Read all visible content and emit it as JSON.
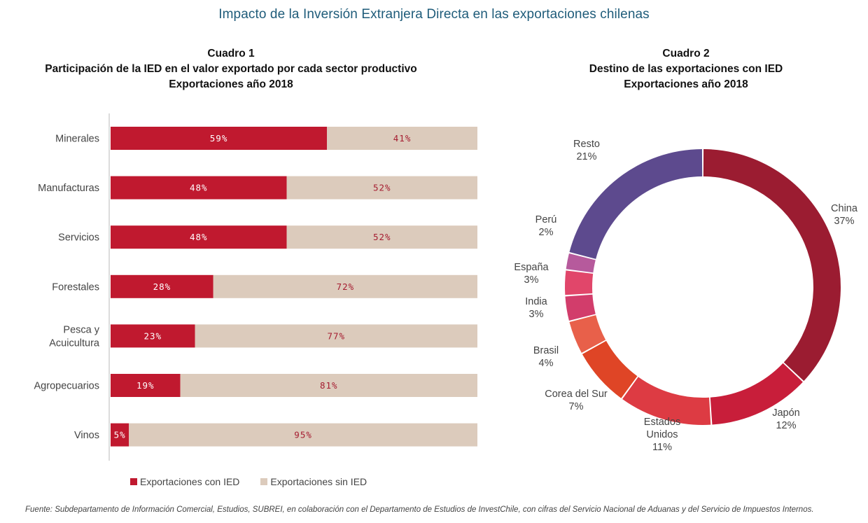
{
  "main_title": "Impacto de la Inversión Extranjera Directa en las exportaciones chilenas",
  "colors": {
    "ied": "#c0192f",
    "sin_ied": "#dccbbc",
    "label_in_red": "#ffffff",
    "label_in_beige": "#a51c30"
  },
  "chart_data": [
    {
      "type": "bar",
      "orientation": "horizontal-stacked-100",
      "number": "Cuadro 1",
      "title": "Participación de la IED en el valor exportado por cada sector productivo",
      "subtitle": "Exportaciones año 2018",
      "categories": [
        [
          "Minerales"
        ],
        [
          "Manufacturas"
        ],
        [
          "Servicios"
        ],
        [
          "Forestales"
        ],
        [
          "Pesca y",
          "Acuicultura"
        ],
        [
          "Agropecuarios"
        ],
        [
          "Vinos"
        ]
      ],
      "series": [
        {
          "name": "Exportaciones con IED",
          "values": [
            59,
            48,
            48,
            28,
            23,
            19,
            5
          ],
          "labels": [
            "59%",
            "48%",
            "48%",
            "28%",
            "23%",
            "19%",
            "5%"
          ]
        },
        {
          "name": "Exportaciones sin IED",
          "values": [
            41,
            52,
            52,
            72,
            77,
            81,
            95
          ],
          "labels": [
            "41%",
            "52%",
            "52%",
            "72%",
            "77%",
            "81%",
            "95%"
          ]
        }
      ],
      "xlim": [
        0,
        100
      ],
      "legend": "bottom"
    },
    {
      "type": "pie",
      "variant": "donut",
      "number": "Cuadro 2",
      "title": "Destino de las exportaciones con IED",
      "subtitle": "Exportaciones año 2018",
      "slices": [
        {
          "label": [
            "China"
          ],
          "value": 37,
          "text": "37%",
          "color": "#9b1c31"
        },
        {
          "label": [
            "Japón"
          ],
          "value": 12,
          "text": "12%",
          "color": "#c81e3a"
        },
        {
          "label": [
            "Estados",
            "Unidos"
          ],
          "value": 11,
          "text": "11%",
          "color": "#dd3b43"
        },
        {
          "label": [
            "Corea del Sur"
          ],
          "value": 7,
          "text": "7%",
          "color": "#df4526"
        },
        {
          "label": [
            "Brasil"
          ],
          "value": 4,
          "text": "4%",
          "color": "#e8604a"
        },
        {
          "label": [
            "India"
          ],
          "value": 3,
          "text": "3%",
          "color": "#d23d6b"
        },
        {
          "label": [
            "España"
          ],
          "value": 3,
          "text": "3%",
          "color": "#e1466a"
        },
        {
          "label": [
            "Perú"
          ],
          "value": 2,
          "text": "2%",
          "color": "#b65a9c"
        },
        {
          "label": [
            "Resto"
          ],
          "value": 21,
          "text": "21%",
          "color": "#5d4a8e"
        }
      ]
    }
  ],
  "legend": {
    "con_ied": "Exportaciones con IED",
    "sin_ied": "Exportaciones sin IED"
  },
  "source": "Fuente: Subdepartamento de Información Comercial, Estudios, SUBREI, en colaboración con el Departamento de Estudios de InvestChile, con cifras del Servicio Nacional de Aduanas y del Servicio de Impuestos Internos."
}
